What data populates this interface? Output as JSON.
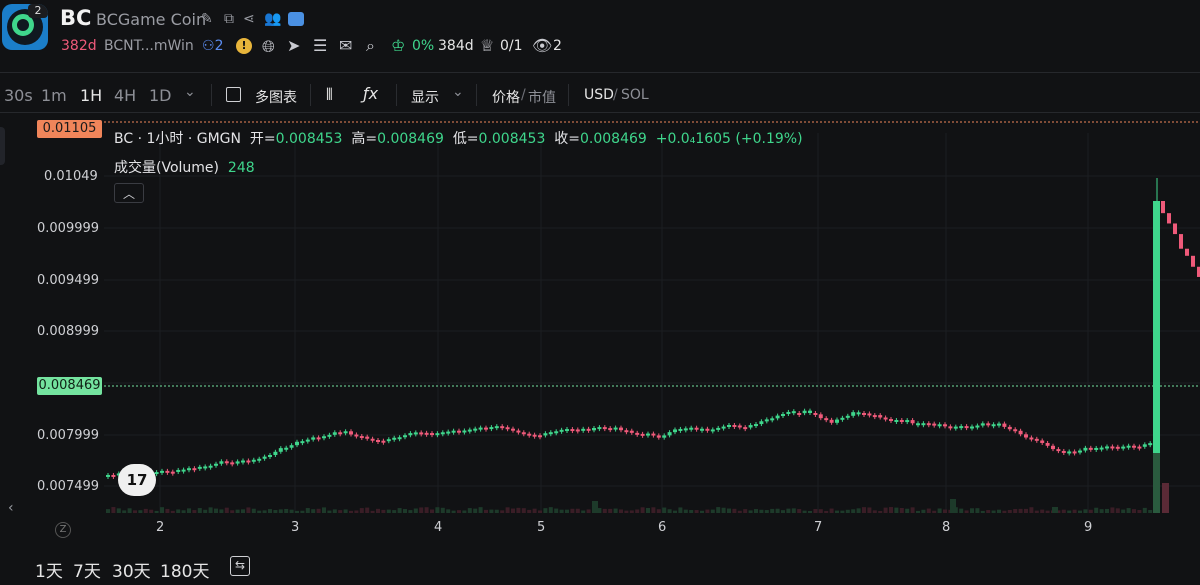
{
  "header": {
    "logo_badge": "2",
    "ticker": "BC",
    "name": "BCGame Coin",
    "age": "382d",
    "address": "BCNT...mWin",
    "holders": "2",
    "warning_glyph": "!",
    "percent": "0%",
    "days": "384d",
    "ratio": "0/1",
    "views": "2"
  },
  "toolbar": {
    "intervals": [
      "30s",
      "1m",
      "1H",
      "4H",
      "1D"
    ],
    "active_interval": "1H",
    "multi_chart": "多图表",
    "display": "显示",
    "price": "价格",
    "market_cap": "市值",
    "usd": "USD",
    "sol": "SOL"
  },
  "legend": {
    "title": "BC · 1小时 · GMGN",
    "open_label": "开=",
    "open": "0.008453",
    "high_label": "高=",
    "high": "0.008469",
    "low_label": "低=",
    "low": "0.008453",
    "close_label": "收=",
    "close": "0.008469",
    "change": "+0.0₄1605 (+0.19%)",
    "volume_label": "成交量(Volume)",
    "volume": "248"
  },
  "price_scale": {
    "top_tag": "0.01105",
    "current_tag": "0.008469",
    "ticks": [
      "0.01049",
      "0.009999",
      "0.009499",
      "0.008999",
      "0.007999",
      "0.007499"
    ]
  },
  "time_axis": [
    "2",
    "3",
    "4",
    "5",
    "6",
    "7",
    "8",
    "9"
  ],
  "ranges": [
    "1天",
    "7天",
    "30天",
    "180天"
  ],
  "tv_logo": "17",
  "z_label": "Z",
  "colors": {
    "up": "#3fd68c",
    "down": "#ef5a7a",
    "top_tag": "#f0855a",
    "current_tag": "#74e39f"
  }
}
